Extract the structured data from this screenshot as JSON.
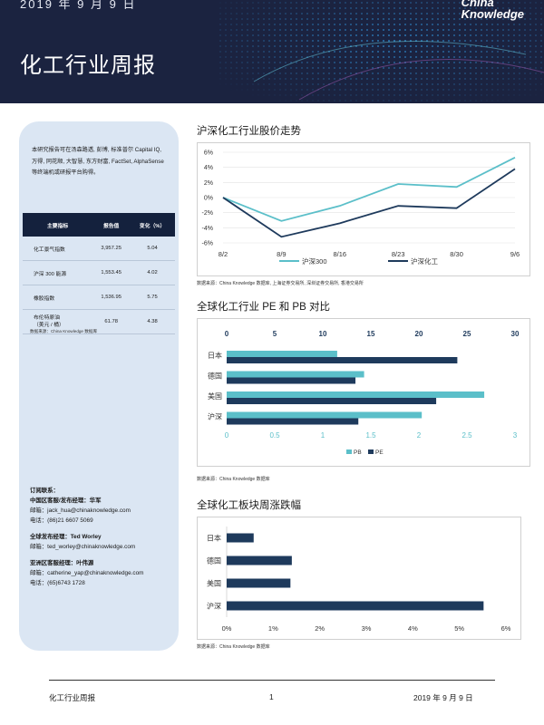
{
  "header": {
    "date": "2019 年 9 月 9 日",
    "title": "化工行业周报",
    "logo_line1": "China",
    "logo_line2": "Knowledge"
  },
  "sidebar": {
    "intro": "本研究报告可在汤森路透, 彭博, 标准普尔 Capital IQ, 万得, 同花顺, 大智慧, 东方财富, FactSet, AlphaSense 等终端机或研报平台购得。",
    "table": {
      "headers": [
        "主要指标",
        "报告值",
        "变化（%）"
      ],
      "rows": [
        [
          "化工景气指数",
          "3,957.25",
          "5.04"
        ],
        [
          "沪深 300 能源",
          "1,553.45",
          "4.02"
        ],
        [
          "橡胶指数",
          "1,536.95",
          "5.75"
        ],
        [
          "布伦特原油\n（美元 / 桶）",
          "61.78",
          "4.38"
        ]
      ]
    },
    "source": "数据来源：China Knowledge 数据库",
    "contacts": [
      {
        "title": "订阅联系：",
        "lines": [
          "中国区客服/发布经理：华军",
          "邮箱：jack_hua@chinaknowledge.com",
          "电话：(86)21 6607 5069"
        ]
      },
      {
        "title": "全球发布经理：Ted Worley",
        "lines": [
          "邮箱：ted_worley@chinaknowledge.com"
        ]
      },
      {
        "title": "亚洲区客服经理：叶伟源",
        "lines": [
          "邮箱：catherine_yap@chinaknowledge.com",
          "电话：(65)6743 1728"
        ]
      }
    ]
  },
  "chart_data": [
    {
      "type": "line",
      "title": "沪深化工行业股价走势",
      "x": [
        "8/2",
        "8/9",
        "8/16",
        "8/23",
        "8/30",
        "9/6"
      ],
      "series": [
        {
          "name": "沪深300",
          "color": "#5bbfc9",
          "values": [
            0.0,
            -3.1,
            -1.1,
            1.8,
            1.4,
            5.3
          ]
        },
        {
          "name": "沪深化工",
          "color": "#1e3a5c",
          "values": [
            0.0,
            -5.2,
            -3.4,
            -1.1,
            -1.4,
            3.8
          ]
        }
      ],
      "yticks": [
        "6%",
        "4%",
        "2%",
        "0%",
        "-2%",
        "-4%",
        "-6%"
      ],
      "ylim": [
        -6,
        6
      ],
      "source": "数据来源：China Knowledge 数据库, 上海证券交易所, 深圳证券交易所, 香港交易所"
    },
    {
      "type": "bar",
      "orientation": "horizontal",
      "title": "全球化工行业 PE 和 PB 对比",
      "categories": [
        "日本",
        "德国",
        "美国",
        "沪深"
      ],
      "series": [
        {
          "name": "PB",
          "color": "#5bbfc9",
          "axis": "bottom",
          "values": [
            1.15,
            1.43,
            2.68,
            2.03
          ]
        },
        {
          "name": "PE",
          "color": "#1e3a5c",
          "axis": "top",
          "values": [
            24.0,
            13.4,
            21.8,
            13.7
          ]
        }
      ],
      "top_ticks": [
        "0",
        "5",
        "10",
        "15",
        "20",
        "25",
        "30"
      ],
      "top_lim": [
        0,
        30
      ],
      "bottom_ticks": [
        "0",
        "0.5",
        "1",
        "1.5",
        "2",
        "2.5",
        "3"
      ],
      "bottom_lim": [
        0,
        3
      ],
      "source": "数据来源：China Knowledge 数据库"
    },
    {
      "type": "bar",
      "orientation": "horizontal",
      "title": "全球化工板块周涨跌幅",
      "categories": [
        "日本",
        "德国",
        "美国",
        "沪深"
      ],
      "series": [
        {
          "color": "#1e3a5c",
          "values": [
            0.58,
            1.4,
            1.37,
            5.52
          ]
        }
      ],
      "xticks": [
        "0%",
        "1%",
        "2%",
        "3%",
        "4%",
        "5%",
        "6%"
      ],
      "xlim": [
        0,
        6
      ],
      "source": "数据来源：China Knowledge 数据库"
    }
  ],
  "footer": {
    "left": "化工行业周报",
    "page": "1",
    "date": "2019 年 9 月 9 日"
  }
}
